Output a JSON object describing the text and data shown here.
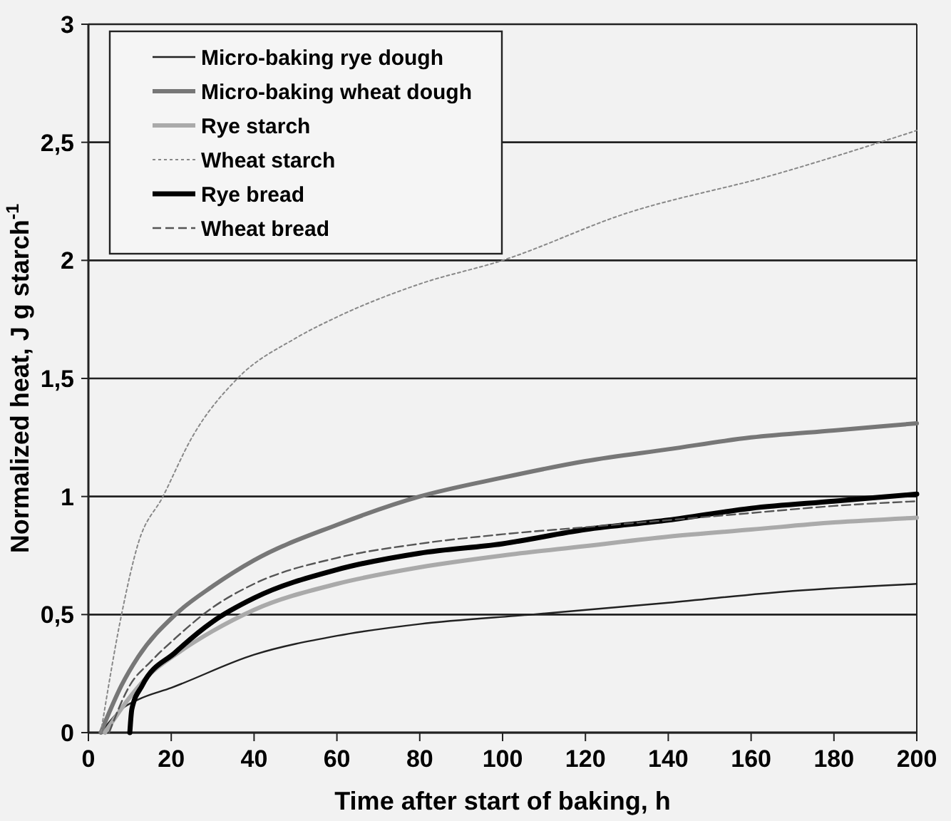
{
  "chart_data": {
    "type": "line",
    "xlabel": "Time after start of baking, h",
    "ylabel": "Normalized heat, J g starch$^{-1}$",
    "xlim": [
      0,
      200
    ],
    "xticks": [
      0,
      20,
      40,
      60,
      80,
      100,
      120,
      140,
      160,
      180,
      200
    ],
    "ylim": [
      0,
      3
    ],
    "yticks": [
      0,
      {
        "value": 0.5,
        "label": "0,5"
      },
      1,
      {
        "value": 1.5,
        "label": "1,5"
      },
      2,
      {
        "value": 2.5,
        "label": "2,5"
      },
      3
    ],
    "grid": "y",
    "legend": "top left",
    "series": [
      {
        "name": "Micro-baking rye dough",
        "color": "#222222",
        "line_style": "solid",
        "x": [
          3,
          8,
          12,
          20,
          40,
          60,
          80,
          107,
          140,
          170,
          200
        ],
        "values": [
          0,
          0.1,
          0.14,
          0.19,
          0.33,
          0.41,
          0.46,
          0.5,
          0.55,
          0.6,
          0.63
        ]
      },
      {
        "name": "Micro-baking wheat dough",
        "color": "#777777",
        "line_style": "solid",
        "x": [
          3,
          8,
          12,
          21,
          30,
          40,
          60,
          80,
          100,
          120,
          140,
          160,
          180,
          200
        ],
        "values": [
          0,
          0.2,
          0.32,
          0.5,
          0.62,
          0.73,
          0.88,
          1.0,
          1.08,
          1.15,
          1.2,
          1.25,
          1.28,
          1.31
        ]
      },
      {
        "name": "Rye starch",
        "color": "#aaaaaa",
        "line_style": "solid",
        "x": [
          4,
          10,
          15,
          21,
          30,
          40,
          60,
          80,
          100,
          120,
          140,
          160,
          180,
          200
        ],
        "values": [
          0,
          0.15,
          0.25,
          0.33,
          0.43,
          0.52,
          0.63,
          0.7,
          0.75,
          0.79,
          0.83,
          0.86,
          0.89,
          0.91
        ]
      },
      {
        "name": "Wheat starch",
        "color": "#888888",
        "line_style": "dotted",
        "x": [
          3,
          8,
          12,
          18,
          25,
          36,
          50,
          60,
          80,
          100,
          130,
          165,
          200
        ],
        "values": [
          0,
          0.5,
          0.8,
          1.0,
          1.25,
          1.5,
          1.67,
          1.76,
          1.9,
          2.0,
          2.2,
          2.36,
          2.55
        ]
      },
      {
        "name": "Rye bread",
        "color": "#000000",
        "line_style": "solid",
        "x": [
          10,
          10.5,
          13,
          21,
          30,
          40,
          60,
          80,
          100,
          120,
          140,
          160,
          180,
          200
        ],
        "values": [
          0,
          0.1,
          0.2,
          0.34,
          0.47,
          0.57,
          0.69,
          0.76,
          0.8,
          0.86,
          0.9,
          0.95,
          0.98,
          1.01
        ]
      },
      {
        "name": "Wheat bread",
        "color": "#555555",
        "line_style": "dashed",
        "x": [
          5,
          10,
          15,
          21,
          30,
          40,
          60,
          80,
          100,
          120,
          140,
          160,
          180,
          200
        ],
        "values": [
          0,
          0.2,
          0.3,
          0.4,
          0.53,
          0.63,
          0.74,
          0.8,
          0.84,
          0.87,
          0.9,
          0.93,
          0.96,
          0.98
        ]
      }
    ]
  }
}
